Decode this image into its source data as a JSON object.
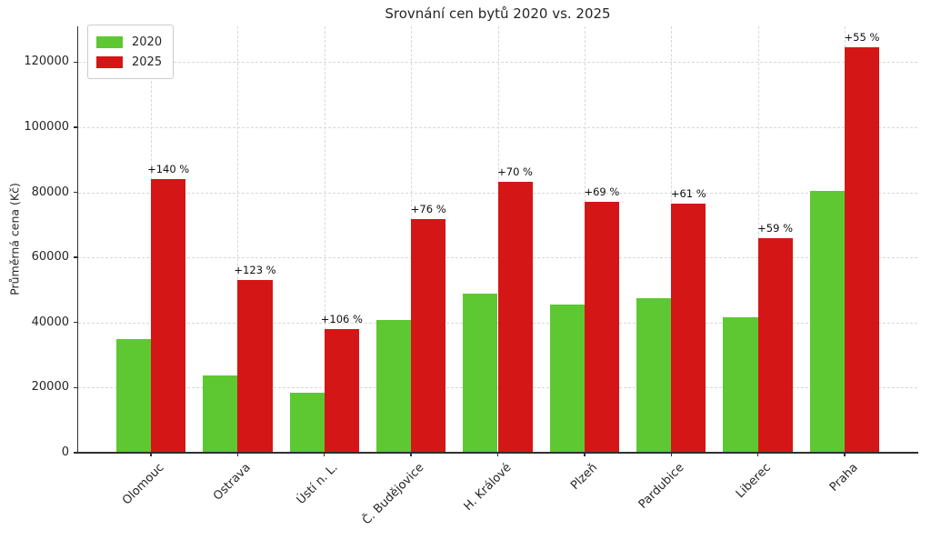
{
  "chart_data": {
    "type": "bar",
    "title": "Srovnání cen bytů 2020 vs. 2025",
    "ylabel": "Průměrná cena (Kč)",
    "xlabel": "",
    "categories": [
      "Olomouc",
      "Ostrava",
      "Ústí n. L.",
      "Č. Budějovice",
      "H. Králové",
      "Plzeň",
      "Pardubice",
      "Liberec",
      "Praha"
    ],
    "series": [
      {
        "name": "2020",
        "color": "#5ec832",
        "values": [
          35000,
          23800,
          18500,
          40800,
          49000,
          45600,
          47600,
          41500,
          80400
        ]
      },
      {
        "name": "2025",
        "color": "#d41616",
        "values": [
          84000,
          53000,
          38100,
          71800,
          83300,
          77100,
          76600,
          66000,
          124600
        ]
      }
    ],
    "annotations": [
      "+140 %",
      "+123 %",
      "+106 %",
      "+76 %",
      "+70 %",
      "+69 %",
      "+61 %",
      "+59 %",
      "+55 %"
    ],
    "yticks": [
      0,
      20000,
      40000,
      60000,
      80000,
      100000,
      120000
    ],
    "ylim": [
      0,
      131000
    ],
    "grid": "dashed both axes",
    "legend_position": "upper left",
    "spine_color": "#2f2f2f",
    "grid_color": "#d8d8d8"
  }
}
